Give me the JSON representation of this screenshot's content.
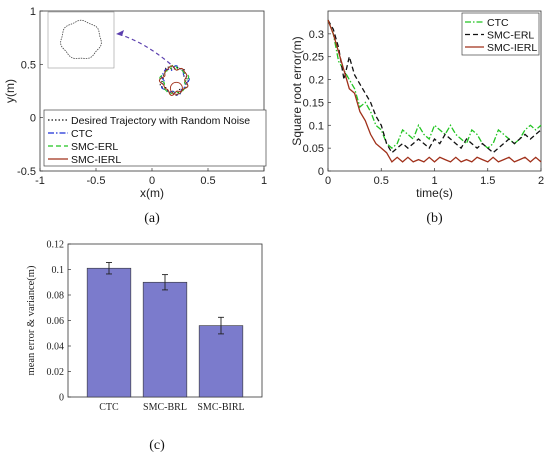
{
  "chart_data": [
    {
      "type": "scatter",
      "panel": "(a)",
      "xlabel": "x(m)",
      "ylabel": "y(m)",
      "xlim": [
        -1,
        1
      ],
      "ylim": [
        -0.5,
        1
      ],
      "xticks": [
        "-1",
        "-0.5",
        "0",
        "0.5",
        "1"
      ],
      "yticks": [
        "-0.5",
        "0",
        "0.5",
        "1"
      ],
      "trajectory_center": [
        0.2,
        0.35
      ],
      "trajectory_radius": 0.11,
      "inset": "zoomed view of circular desired trajectory",
      "legend_position": "bottom-left",
      "series": [
        {
          "name": "Desired Trajectory with Random Noise",
          "color": "#111111",
          "style": "dotted"
        },
        {
          "name": "CTC",
          "color": "#1a2fd6",
          "style": "dashdot"
        },
        {
          "name": "SMC-ERL",
          "color": "#22c422",
          "style": "dashed"
        },
        {
          "name": "SMC-IERL",
          "color": "#a0301a",
          "style": "solid"
        }
      ]
    },
    {
      "type": "line",
      "panel": "(b)",
      "xlabel": "time(s)",
      "ylabel": "Square root error(m)",
      "xlim": [
        0,
        2
      ],
      "ylim": [
        0,
        0.35
      ],
      "xticks": [
        "0",
        "0.5",
        "1",
        "1.5",
        "2"
      ],
      "yticks": [
        "0",
        "0.05",
        "0.1",
        "0.15",
        "0.2",
        "0.25",
        "0.3"
      ],
      "legend_position": "top-right",
      "x": [
        0,
        0.05,
        0.1,
        0.15,
        0.2,
        0.25,
        0.3,
        0.35,
        0.4,
        0.45,
        0.5,
        0.55,
        0.6,
        0.65,
        0.7,
        0.75,
        0.8,
        0.85,
        0.9,
        0.95,
        1.0,
        1.05,
        1.1,
        1.15,
        1.2,
        1.25,
        1.3,
        1.35,
        1.4,
        1.45,
        1.5,
        1.55,
        1.6,
        1.65,
        1.7,
        1.75,
        1.8,
        1.85,
        1.9,
        1.95,
        2.0
      ],
      "series": [
        {
          "name": "CTC",
          "color": "#22c422",
          "style": "dashdot",
          "values": [
            0.33,
            0.3,
            0.24,
            0.22,
            0.2,
            0.18,
            0.14,
            0.15,
            0.13,
            0.1,
            0.09,
            0.06,
            0.05,
            0.06,
            0.09,
            0.08,
            0.07,
            0.1,
            0.08,
            0.07,
            0.1,
            0.09,
            0.08,
            0.1,
            0.08,
            0.07,
            0.06,
            0.09,
            0.08,
            0.06,
            0.05,
            0.06,
            0.09,
            0.08,
            0.07,
            0.06,
            0.07,
            0.09,
            0.1,
            0.09,
            0.1
          ]
        },
        {
          "name": "SMC-ERL",
          "color": "#111111",
          "style": "dashed",
          "values": [
            0.33,
            0.31,
            0.27,
            0.2,
            0.25,
            0.21,
            0.19,
            0.17,
            0.15,
            0.12,
            0.1,
            0.06,
            0.04,
            0.05,
            0.06,
            0.05,
            0.06,
            0.07,
            0.06,
            0.05,
            0.07,
            0.06,
            0.08,
            0.07,
            0.06,
            0.05,
            0.07,
            0.06,
            0.05,
            0.06,
            0.05,
            0.04,
            0.05,
            0.06,
            0.07,
            0.06,
            0.07,
            0.08,
            0.07,
            0.08,
            0.09
          ]
        },
        {
          "name": "SMC-IERL",
          "color": "#a0301a",
          "style": "solid",
          "values": [
            0.33,
            0.3,
            0.26,
            0.22,
            0.18,
            0.17,
            0.13,
            0.11,
            0.08,
            0.06,
            0.05,
            0.04,
            0.02,
            0.03,
            0.02,
            0.03,
            0.02,
            0.025,
            0.02,
            0.03,
            0.02,
            0.03,
            0.025,
            0.02,
            0.03,
            0.02,
            0.025,
            0.02,
            0.03,
            0.025,
            0.02,
            0.03,
            0.02,
            0.025,
            0.03,
            0.02,
            0.025,
            0.03,
            0.02,
            0.03,
            0.02
          ]
        }
      ]
    },
    {
      "type": "bar",
      "panel": "(c)",
      "ylabel": "mean error & variance(m)",
      "ylim": [
        0,
        0.12
      ],
      "yticks": [
        "0",
        "0.02",
        "0.04",
        "0.06",
        "0.08",
        "0.1",
        "0.12"
      ],
      "categories": [
        "CTC",
        "SMC-BRL",
        "SMC-BIRL"
      ],
      "values": [
        0.101,
        0.09,
        0.056
      ],
      "errors": [
        0.0045,
        0.006,
        0.0065
      ],
      "bar_color": "#7b7bcc"
    }
  ],
  "captions": {
    "a": "(a)",
    "b": "(b)",
    "c": "(c)"
  }
}
